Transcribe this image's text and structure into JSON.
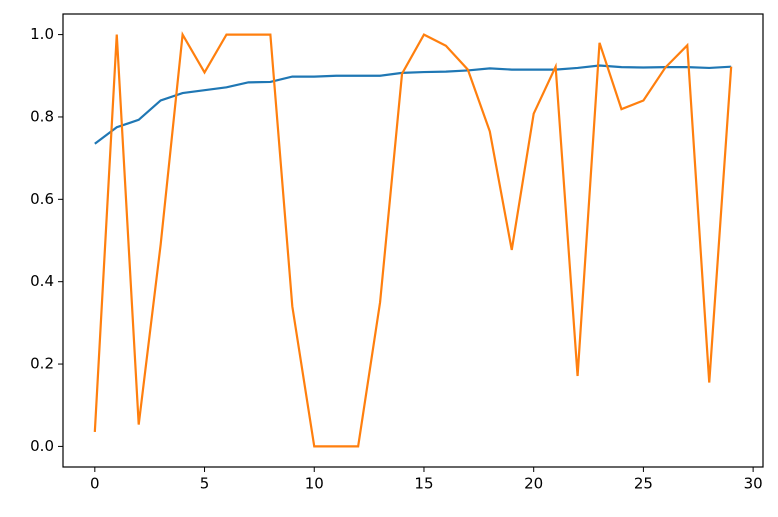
{
  "chart_data": {
    "type": "line",
    "x": [
      0,
      1,
      2,
      3,
      4,
      5,
      6,
      7,
      8,
      9,
      10,
      11,
      12,
      13,
      14,
      15,
      16,
      17,
      18,
      19,
      20,
      21,
      22,
      23,
      24,
      25,
      26,
      27,
      28,
      29
    ],
    "series": [
      {
        "color": "#1f77b4",
        "values": [
          0.735,
          0.775,
          0.793,
          0.84,
          0.858,
          0.865,
          0.872,
          0.884,
          0.885,
          0.898,
          0.898,
          0.9,
          0.9,
          0.9,
          0.907,
          0.909,
          0.91,
          0.913,
          0.918,
          0.915,
          0.915,
          0.915,
          0.919,
          0.925,
          0.921,
          0.92,
          0.921,
          0.921,
          0.919,
          0.922
        ]
      },
      {
        "color": "#ff7f0e",
        "values": [
          0.035,
          1.0,
          0.053,
          0.49,
          1.0,
          0.908,
          1.0,
          1.0,
          1.0,
          0.34,
          0.0,
          0.0,
          0.0,
          0.35,
          0.905,
          1.0,
          0.973,
          0.915,
          0.765,
          0.477,
          0.808,
          0.922,
          0.171,
          0.98,
          0.819,
          0.84,
          0.92,
          0.974,
          0.155,
          0.922
        ]
      }
    ],
    "xlim": [
      -1.45,
      30.45
    ],
    "xticks": [
      0,
      5,
      10,
      15,
      20,
      25,
      30
    ],
    "ylim": [
      -0.05,
      1.05
    ],
    "yticks": [
      {
        "value": 0,
        "label": "0.0"
      },
      0.2,
      0.4,
      0.6,
      0.8,
      {
        "value": 1,
        "label": "1.0"
      }
    ]
  }
}
